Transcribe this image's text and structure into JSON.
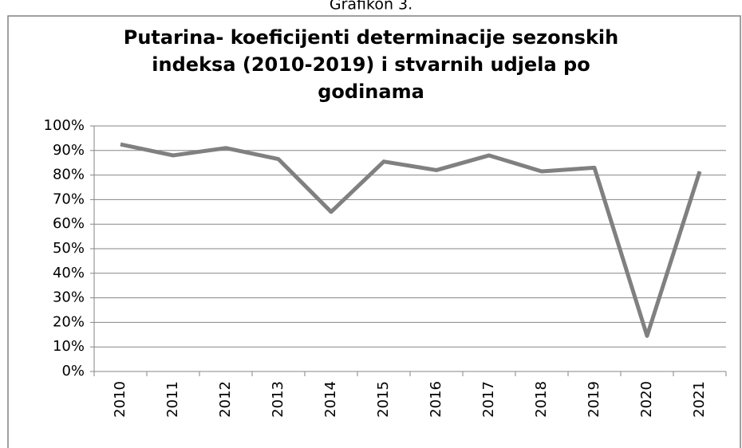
{
  "caption": "Grafikon 3.",
  "chart_data": {
    "type": "line",
    "title": [
      "Putarina- koeficijenti determinacije sezonskih",
      "indeksa (2010-2019)  i stvarnih udjela po",
      "godinama"
    ],
    "categories": [
      "2010",
      "2011",
      "2012",
      "2013",
      "2014",
      "2015",
      "2016",
      "2017",
      "2018",
      "2019",
      "2020",
      "2021"
    ],
    "series": [
      {
        "color": "#808080",
        "values": [
          92.5,
          88,
          91,
          86.5,
          65,
          85.5,
          82,
          88,
          81.5,
          83,
          14.5,
          81.5
        ]
      }
    ],
    "ylim": [
      0,
      100
    ],
    "yticks": [
      {
        "value": 0,
        "label": "0%"
      },
      {
        "value": 10,
        "label": "10%"
      },
      {
        "value": 20,
        "label": "20%"
      },
      {
        "value": 30,
        "label": "30%"
      },
      {
        "value": 40,
        "label": "40%"
      },
      {
        "value": 50,
        "label": "50%"
      },
      {
        "value": 60,
        "label": "60%"
      },
      {
        "value": 70,
        "label": "70%"
      },
      {
        "value": 80,
        "label": "80%"
      },
      {
        "value": 90,
        "label": "90%"
      },
      {
        "value": 100,
        "label": "100%"
      }
    ],
    "grid": true
  }
}
